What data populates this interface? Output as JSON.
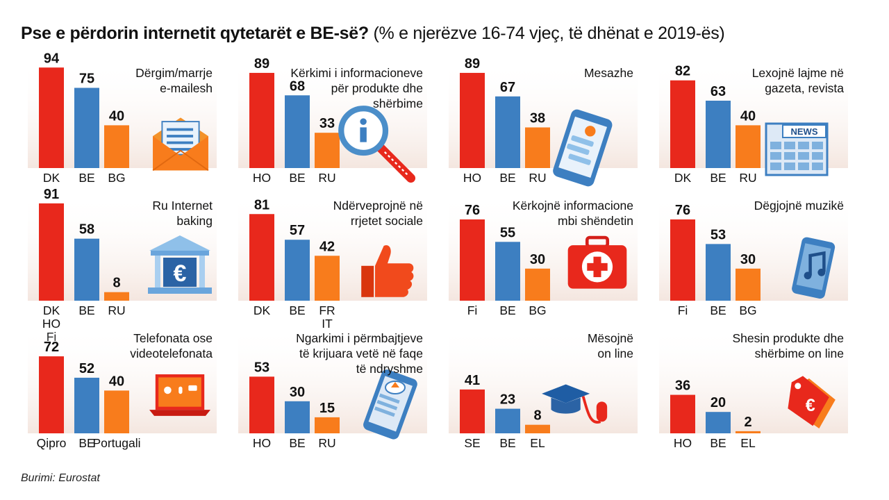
{
  "header": {
    "title": "Pse e përdorin internetit qytetarët e BE-së?",
    "subtitle": "(% e njerëzve 16-74 vjeç, të dhënat e 2019-ës)"
  },
  "source": "Burimi: Eurostat",
  "colors": {
    "top": "#e8281c",
    "eu": "#3d7fc1",
    "low": "#f87c1c",
    "bg_gradient": "#f4e6df"
  },
  "chart_data": [
    {
      "type": "bar",
      "title": "Dërgim/marrje\ne-mailesh",
      "icon": "envelope-icon",
      "categories": [
        "DK",
        "BE",
        "BG"
      ],
      "values": [
        94,
        75,
        40
      ],
      "ylim": [
        0,
        100
      ]
    },
    {
      "type": "bar",
      "title": "Kërkimi i informacioneve\npër produkte dhe\nshërbime",
      "icon": "info-magnifier-icon",
      "categories": [
        "HO",
        "BE",
        "RU"
      ],
      "values": [
        89,
        68,
        33
      ],
      "ylim": [
        0,
        100
      ]
    },
    {
      "type": "bar",
      "title": "Mesazhe",
      "icon": "smartphone-chat-icon",
      "categories": [
        "HO",
        "BE",
        "RU"
      ],
      "values": [
        89,
        67,
        38
      ],
      "ylim": [
        0,
        100
      ]
    },
    {
      "type": "bar",
      "title": "Lexojnë lajme në\ngazeta, revista",
      "icon": "newspaper-icon",
      "icon_text": "NEWS",
      "categories": [
        "DK",
        "BE",
        "RU"
      ],
      "values": [
        82,
        63,
        40
      ],
      "ylim": [
        0,
        100
      ]
    },
    {
      "type": "bar",
      "title": "Ru Internet\nbaking",
      "icon": "bank-euro-icon",
      "icon_text": "€",
      "categories": [
        "DK\nHO\nFi",
        "BE",
        "RU"
      ],
      "values": [
        91,
        58,
        8
      ],
      "ylim": [
        0,
        100
      ]
    },
    {
      "type": "bar",
      "title": "Ndërveprojnë në\nrrjetet sociale",
      "icon": "thumbs-up-icon",
      "categories": [
        "DK",
        "BE",
        "FR\nIT"
      ],
      "values": [
        81,
        57,
        42
      ],
      "ylim": [
        0,
        100
      ]
    },
    {
      "type": "bar",
      "title": "Kërkojnë informacione\nmbi shëndetin",
      "icon": "first-aid-kit-icon",
      "categories": [
        "Fi",
        "BE",
        "BG"
      ],
      "values": [
        76,
        55,
        30
      ],
      "ylim": [
        0,
        100
      ]
    },
    {
      "type": "bar",
      "title": "Dëgjojnë muzikë",
      "icon": "music-phone-icon",
      "categories": [
        "Fi",
        "BE",
        "BG"
      ],
      "values": [
        76,
        53,
        30
      ],
      "ylim": [
        0,
        100
      ]
    },
    {
      "type": "bar",
      "title": "Telefonata ose\nvideotelefonata",
      "icon": "laptop-video-call-icon",
      "categories": [
        "Qipro",
        "BE",
        "Portugali"
      ],
      "values": [
        72,
        52,
        40
      ],
      "ylim": [
        0,
        100
      ]
    },
    {
      "type": "bar",
      "title": "Ngarkimi i përmbajtjeve\ntë krijuara vetë në faqe\ntë ndryshme",
      "icon": "cloud-upload-phone-icon",
      "categories": [
        "HO",
        "BE",
        "RU"
      ],
      "values": [
        53,
        30,
        15
      ],
      "ylim": [
        0,
        100
      ]
    },
    {
      "type": "bar",
      "title": "Mësojnë\non line",
      "icon": "graduation-cap-mouse-icon",
      "categories": [
        "SE",
        "BE",
        "EL"
      ],
      "values": [
        41,
        23,
        8
      ],
      "ylim": [
        0,
        100
      ]
    },
    {
      "type": "bar",
      "title": "Shesin produkte dhe\nshërbime on line",
      "icon": "price-tag-euro-icon",
      "icon_text": "€",
      "categories": [
        "HO",
        "BE",
        "EL"
      ],
      "values": [
        36,
        20,
        2
      ],
      "ylim": [
        0,
        100
      ]
    }
  ]
}
